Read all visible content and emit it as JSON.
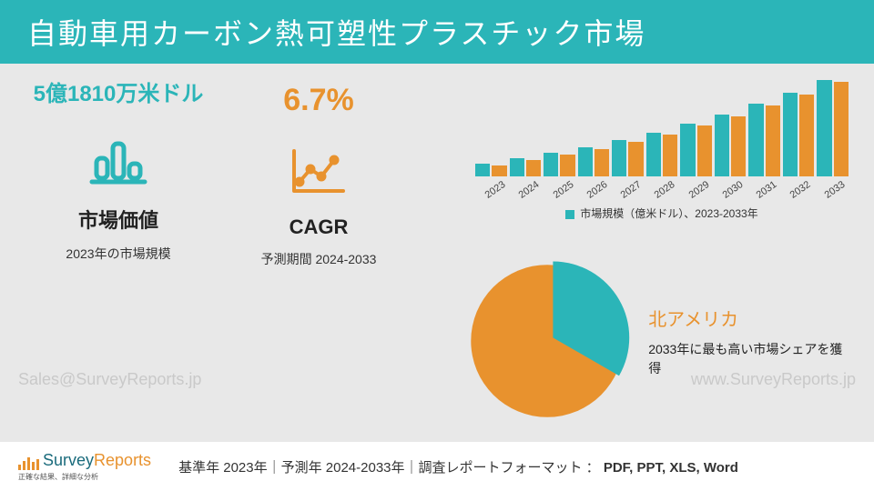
{
  "header": {
    "title": "自動車用カーボン熱可塑性プラスチック市場"
  },
  "metric1": {
    "value": "5億1810万米ドル",
    "label": "市場価値",
    "sub": "2023年の市場規模",
    "icon_color": "#2bb5b8"
  },
  "metric2": {
    "value": "6.7%",
    "label": "CAGR",
    "sub": "予測期間 2024-2033",
    "icon_color": "#e8922e"
  },
  "bar_chart": {
    "type": "bar",
    "years": [
      "2023",
      "2024",
      "2025",
      "2026",
      "2027",
      "2028",
      "2029",
      "2030",
      "2031",
      "2032",
      "2033"
    ],
    "series_a_heights": [
      14,
      20,
      26,
      32,
      40,
      48,
      58,
      68,
      80,
      92,
      106
    ],
    "series_b_heights": [
      12,
      18,
      24,
      30,
      38,
      46,
      56,
      66,
      78,
      90,
      104
    ],
    "color_a": "#2bb5b8",
    "color_b": "#e8922e",
    "legend": "市場規模（億米ドル）、2023-2033年"
  },
  "pie": {
    "type": "pie",
    "slice_teal_deg": 120,
    "color_teal": "#2bb5b8",
    "color_orange": "#e8922e",
    "title": "北アメリカ",
    "sub": "2033年に最も高い市場シェアを獲得"
  },
  "watermarks": {
    "left": "Sales@SurveyReports.jp",
    "right": "www.SurveyReports.jp"
  },
  "logo": {
    "line1a": "Survey",
    "line1b": "Reports",
    "tag": "正確な結果、詳細な分析"
  },
  "footer": {
    "text_prefix": "基準年 2023年｜予測年 2024-2033年｜調査レポートフォーマット ： ",
    "formats": "PDF, PPT, XLS, Word"
  },
  "colors": {
    "bg": "#e8e8e8",
    "header_bg": "#2bb5b8",
    "teal": "#2bb5b8",
    "orange": "#e8922e"
  }
}
